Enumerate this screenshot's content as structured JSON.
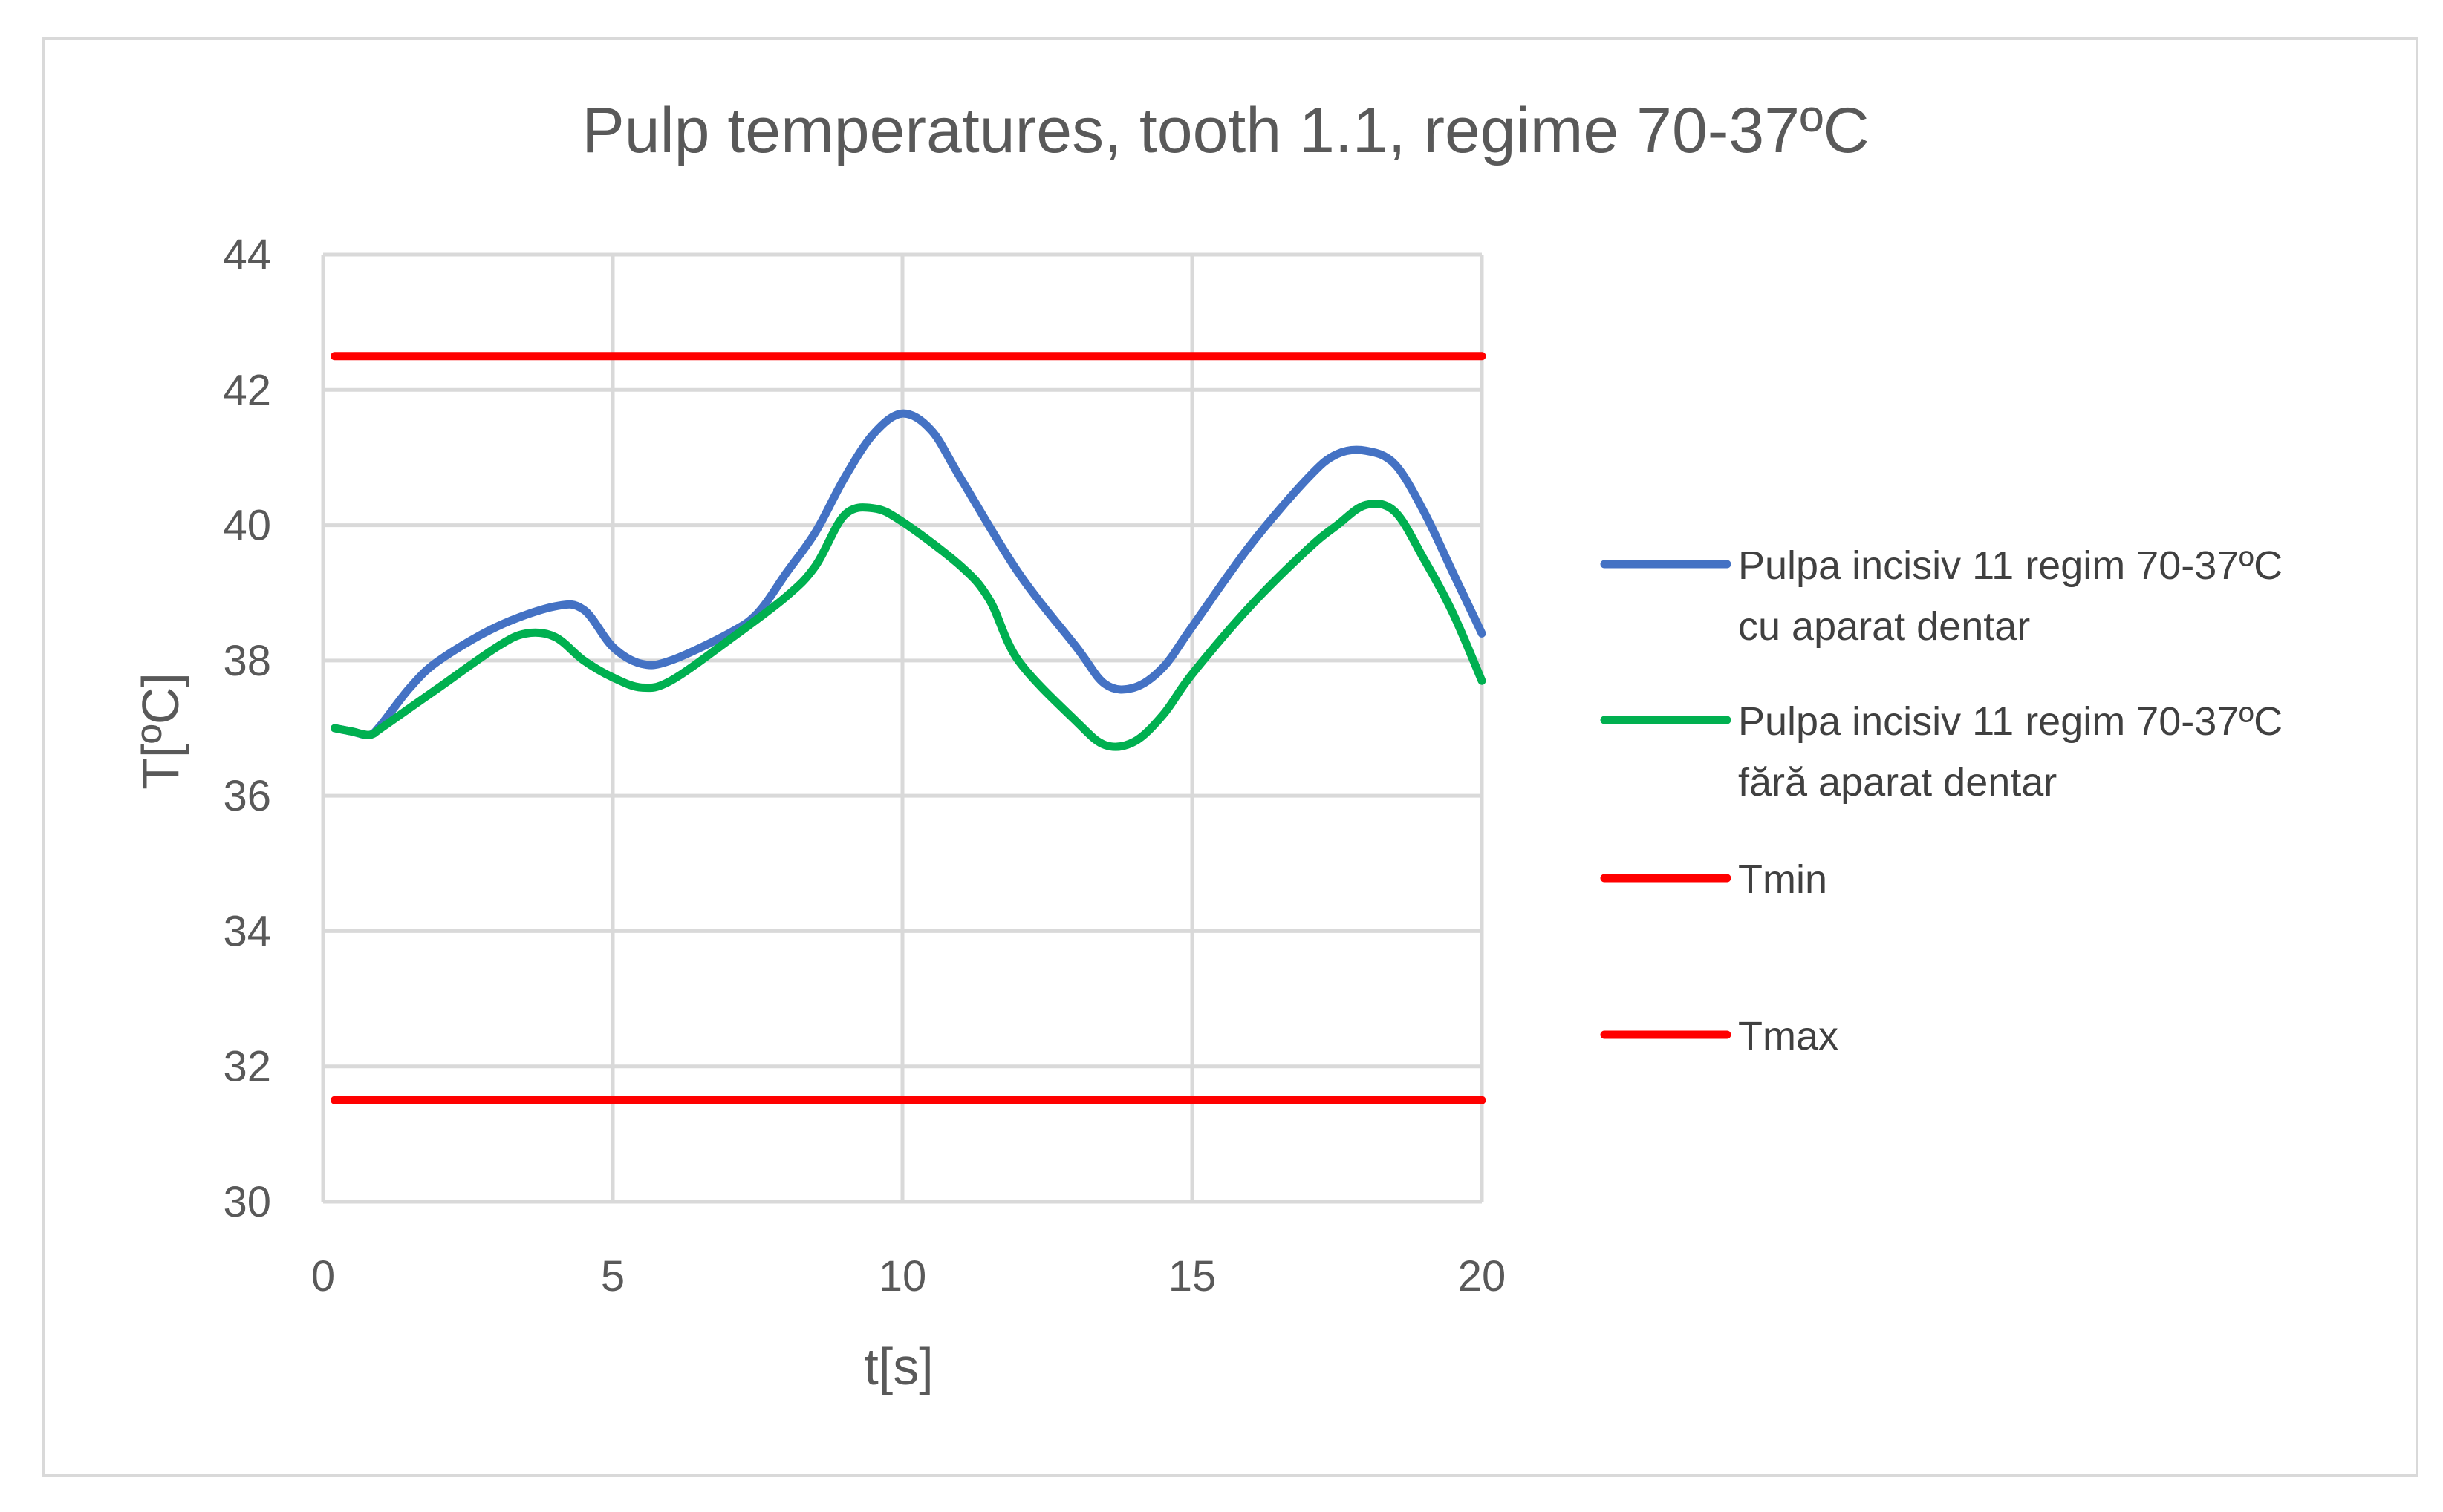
{
  "chart_data": {
    "type": "line",
    "title": "Pulp temperatures, tooth 1.1, regime 70-37ºC",
    "xlabel": "t[s]",
    "ylabel": "T[ºC]",
    "xlim": [
      0,
      20
    ],
    "ylim": [
      30,
      44
    ],
    "x_ticks": [
      0,
      5,
      10,
      15,
      20
    ],
    "y_ticks": [
      30,
      32,
      34,
      36,
      38,
      40,
      42,
      44
    ],
    "grid": true,
    "legend_position": "right",
    "series": [
      {
        "name": "Pulpa incisiv 11 regim 70-37ºC cu aparat dentar",
        "legend_lines": [
          "Pulpa incisiv 11 regim 70-37ºC",
          "cu aparat dentar"
        ],
        "color": "#4472C4",
        "x": [
          0.2,
          0.5,
          0.8,
          1.0,
          1.5,
          2.0,
          3.0,
          4.0,
          4.5,
          5.0,
          5.5,
          6.0,
          7.0,
          7.5,
          8.0,
          8.5,
          9.0,
          9.5,
          10.0,
          10.5,
          11.0,
          12.0,
          13.0,
          13.5,
          14.0,
          14.5,
          15.0,
          16.0,
          17.0,
          17.5,
          18.0,
          18.5,
          19.0,
          19.5,
          20.0
        ],
        "y": [
          37.0,
          36.95,
          36.9,
          37.05,
          37.6,
          38.0,
          38.5,
          38.8,
          38.75,
          38.2,
          37.95,
          38.0,
          38.4,
          38.7,
          39.3,
          39.9,
          40.7,
          41.35,
          41.65,
          41.4,
          40.7,
          39.3,
          38.2,
          37.65,
          37.6,
          37.9,
          38.5,
          39.7,
          40.7,
          41.05,
          41.1,
          40.9,
          40.2,
          39.3,
          38.4
        ]
      },
      {
        "name": "Pulpa incisiv 11 regim 70-37ºC fără aparat dentar",
        "legend_lines": [
          "Pulpa incisiv 11 regim 70-37ºC",
          "fără aparat dentar"
        ],
        "color": "#00B050",
        "x": [
          0.2,
          0.5,
          0.8,
          1.0,
          1.5,
          2.0,
          3.0,
          3.5,
          4.0,
          4.5,
          5.0,
          5.5,
          6.0,
          7.0,
          8.0,
          8.5,
          9.0,
          9.5,
          10.0,
          11.0,
          11.5,
          12.0,
          13.0,
          13.5,
          14.0,
          14.5,
          15.0,
          16.0,
          17.0,
          17.5,
          18.0,
          18.5,
          19.0,
          19.5,
          20.0
        ],
        "y": [
          37.0,
          36.95,
          36.9,
          37.0,
          37.3,
          37.6,
          38.2,
          38.4,
          38.35,
          38.0,
          37.75,
          37.6,
          37.7,
          38.3,
          38.95,
          39.4,
          40.15,
          40.25,
          40.05,
          39.4,
          38.9,
          38.0,
          37.1,
          36.75,
          36.8,
          37.2,
          37.8,
          38.8,
          39.65,
          40.0,
          40.3,
          40.2,
          39.5,
          38.7,
          37.7
        ]
      },
      {
        "name": "Tmin",
        "color": "#FF0000",
        "x": [
          0.2,
          20.0
        ],
        "y": [
          42.5,
          42.5
        ]
      },
      {
        "name": "Tmax",
        "color": "#FF0000",
        "x": [
          0.2,
          20.0
        ],
        "y": [
          31.5,
          31.5
        ]
      }
    ]
  }
}
